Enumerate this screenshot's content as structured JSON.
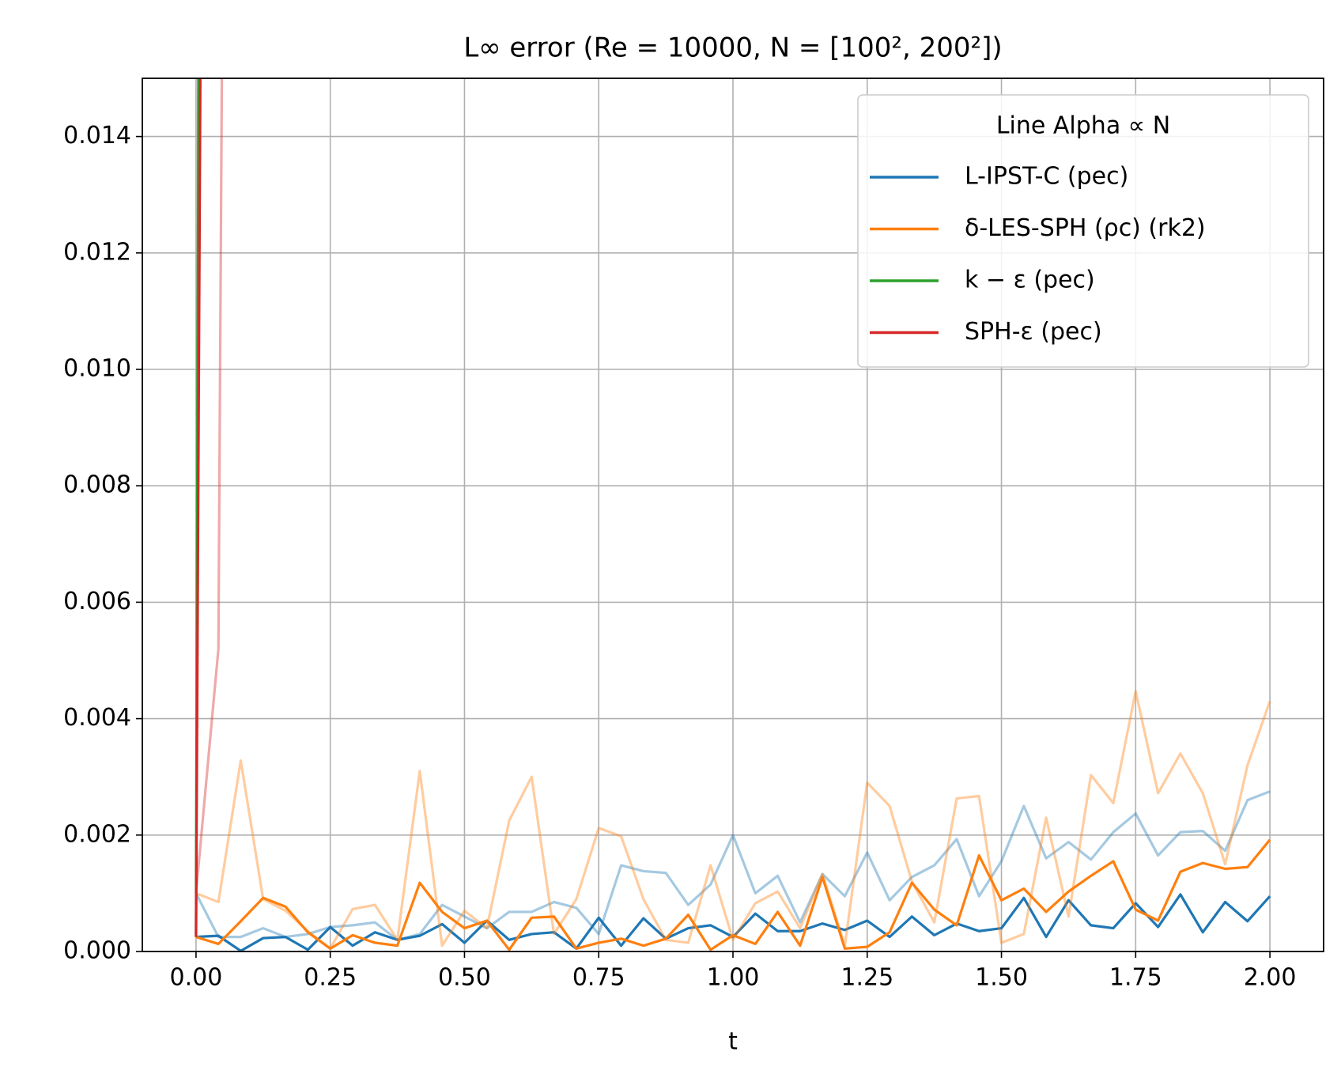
{
  "chart_data": {
    "type": "line",
    "title": "L∞ error  (Re = 10000, N = [100², 200²])",
    "xlabel": "t",
    "legend_title": "Line Alpha ∝ N",
    "legend": "upper right",
    "grid": true,
    "xlim": [
      -0.1,
      2.1
    ],
    "ylim": [
      0,
      0.015
    ],
    "xticks": [
      {
        "value": 0,
        "label": "0.00"
      },
      0.25,
      {
        "value": 0.5,
        "label": "0.50"
      },
      0.75,
      {
        "value": 1,
        "label": "1.00"
      },
      1.25,
      {
        "value": 1.5,
        "label": "1.50"
      },
      1.75,
      {
        "value": 2,
        "label": "2.00"
      }
    ],
    "yticks": [
      {
        "value": 0,
        "label": "0.000"
      },
      0.002,
      0.004,
      0.006,
      0.008,
      {
        "value": 0.01,
        "label": "0.010"
      },
      0.012,
      0.014
    ],
    "x": [
      0,
      0.0417,
      0.0833,
      0.125,
      0.1667,
      0.2083,
      0.25,
      0.2917,
      0.3333,
      0.375,
      0.4167,
      0.4583,
      0.5,
      0.5417,
      0.5833,
      0.625,
      0.6667,
      0.7083,
      0.75,
      0.7917,
      0.8333,
      0.875,
      0.9167,
      0.9583,
      1,
      1.0417,
      1.0833,
      1.125,
      1.1667,
      1.2083,
      1.25,
      1.2917,
      1.3333,
      1.375,
      1.4167,
      1.4583,
      1.5,
      1.5417,
      1.5833,
      1.625,
      1.6667,
      1.7083,
      1.75,
      1.7917,
      1.8333,
      1.875,
      1.9167,
      1.9583,
      2
    ],
    "series": [
      {
        "name": "L-IPST-C (pec)",
        "color": "#1f77b4",
        "runs": [
          {
            "alpha": 0.4,
            "values": [
              0.001,
              0.00025,
              0.00025,
              0.0004,
              0.00025,
              0.0003,
              0.00042,
              0.00045,
              0.0005,
              0.0002,
              0.0003,
              0.0008,
              0.0006,
              0.0004,
              0.00068,
              0.00068,
              0.00085,
              0.00075,
              0.0003,
              0.00148,
              0.00138,
              0.00135,
              0.0008,
              0.00115,
              0.002,
              0.001,
              0.0013,
              0.0005,
              0.00133,
              0.00095,
              0.0017,
              0.00088,
              0.00128,
              0.00148,
              0.00193,
              0.00095,
              0.00155,
              0.0025,
              0.0016,
              0.00188,
              0.00158,
              0.00205,
              0.00237,
              0.00165,
              0.00205,
              0.00207,
              0.00173,
              0.0026,
              0.00275
            ]
          },
          {
            "alpha": 1,
            "values": [
              0.00025,
              0.00027,
              1e-05,
              0.00023,
              0.00025,
              3e-05,
              0.00042,
              0.0001,
              0.00033,
              0.0002,
              0.00027,
              0.00047,
              0.00015,
              0.00053,
              0.0002,
              0.0003,
              0.00033,
              5e-05,
              0.00058,
              0.0001,
              0.00057,
              0.00022,
              0.0004,
              0.00045,
              0.00025,
              0.00065,
              0.00035,
              0.00035,
              0.00048,
              0.00037,
              0.00053,
              0.00025,
              0.0006,
              0.00028,
              0.00048,
              0.00035,
              0.0004,
              0.00092,
              0.00025,
              0.00088,
              0.00045,
              0.0004,
              0.00083,
              0.00042,
              0.00098,
              0.00033,
              0.00085,
              0.00052,
              0.00095
            ]
          }
        ]
      },
      {
        "name": "δ-LES-SPH (ρc) (rk2)",
        "color": "#ff7f0e",
        "runs": [
          {
            "alpha": 0.4,
            "values": [
              0.001,
              0.00085,
              0.00328,
              0.0009,
              0.0007,
              0.00035,
              5e-05,
              0.00073,
              0.0008,
              0.0002,
              0.0031,
              0.0001,
              0.0007,
              0.0004,
              0.00225,
              0.003,
              0.0003,
              0.0009,
              0.00212,
              0.00198,
              0.0009,
              0.0002,
              0.00015,
              0.00148,
              0.0002,
              0.00083,
              0.00103,
              0.0004,
              0.00133,
              0.0001,
              0.0029,
              0.0025,
              0.0012,
              0.0005,
              0.00263,
              0.00267,
              0.00015,
              0.0003,
              0.0023,
              0.0006,
              0.00303,
              0.00255,
              0.00447,
              0.00272,
              0.0034,
              0.00272,
              0.0015,
              0.0032,
              0.0043
            ]
          },
          {
            "alpha": 1,
            "values": [
              0.00025,
              0.00013,
              0.00052,
              0.00092,
              0.00077,
              0.00033,
              5e-05,
              0.00028,
              0.00015,
              0.0001,
              0.00118,
              0.00068,
              0.0004,
              0.00053,
              3e-05,
              0.00058,
              0.0006,
              5e-05,
              0.00015,
              0.00022,
              0.0001,
              0.00022,
              0.00063,
              3e-05,
              0.00028,
              0.00013,
              0.00068,
              0.0001,
              0.00128,
              5e-05,
              8e-05,
              0.00033,
              0.00118,
              0.00072,
              0.00045,
              0.00165,
              0.00088,
              0.00108,
              0.00068,
              0.00103,
              0.0013,
              0.00155,
              0.00072,
              0.00053,
              0.00137,
              0.00152,
              0.00142,
              0.00145,
              0.00192
            ]
          }
        ]
      },
      {
        "name": "k − ε (pec)",
        "color": "#2ca02c",
        "runs": [
          {
            "alpha": 0.4,
            "values": [
              0.001,
              0.15,
              null,
              null,
              null,
              null,
              null,
              null,
              null,
              null,
              null,
              null,
              null,
              null,
              null,
              null,
              null,
              null,
              null,
              null,
              null,
              null,
              null,
              null,
              null,
              null,
              null,
              null,
              null,
              null,
              null,
              null,
              null,
              null,
              null,
              null,
              null,
              null,
              null,
              null,
              null,
              null,
              null,
              null,
              null,
              null,
              null,
              null,
              null
            ]
          },
          {
            "alpha": 1,
            "values": [
              0.00025,
              0.13,
              null,
              null,
              null,
              null,
              null,
              null,
              null,
              null,
              null,
              null,
              null,
              null,
              null,
              null,
              null,
              null,
              null,
              null,
              null,
              null,
              null,
              null,
              null,
              null,
              null,
              null,
              null,
              null,
              null,
              null,
              null,
              null,
              null,
              null,
              null,
              null,
              null,
              null,
              null,
              null,
              null,
              null,
              null,
              null,
              null,
              null,
              null
            ]
          }
        ]
      },
      {
        "name": "SPH-ε (pec)",
        "color": "#d62728",
        "runs": [
          {
            "alpha": 0.4,
            "values": [
              0.001,
              0.0052,
              0.069,
              null,
              null,
              null,
              null,
              null,
              null,
              null,
              null,
              null,
              null,
              null,
              null,
              null,
              null,
              null,
              null,
              null,
              null,
              null,
              null,
              null,
              null,
              null,
              null,
              null,
              null,
              null,
              null,
              null,
              null,
              null,
              null,
              null,
              null,
              null,
              null,
              null,
              null,
              null,
              null,
              null,
              null,
              null,
              null,
              null,
              null
            ]
          },
          {
            "alpha": 1,
            "values": [
              0.00025,
              0.077,
              null,
              null,
              null,
              null,
              null,
              null,
              null,
              null,
              null,
              null,
              null,
              null,
              null,
              null,
              null,
              null,
              null,
              null,
              null,
              null,
              null,
              null,
              null,
              null,
              null,
              null,
              null,
              null,
              null,
              null,
              null,
              null,
              null,
              null,
              null,
              null,
              null,
              null,
              null,
              null,
              null,
              null,
              null,
              null,
              null,
              null,
              null
            ]
          }
        ]
      }
    ]
  }
}
